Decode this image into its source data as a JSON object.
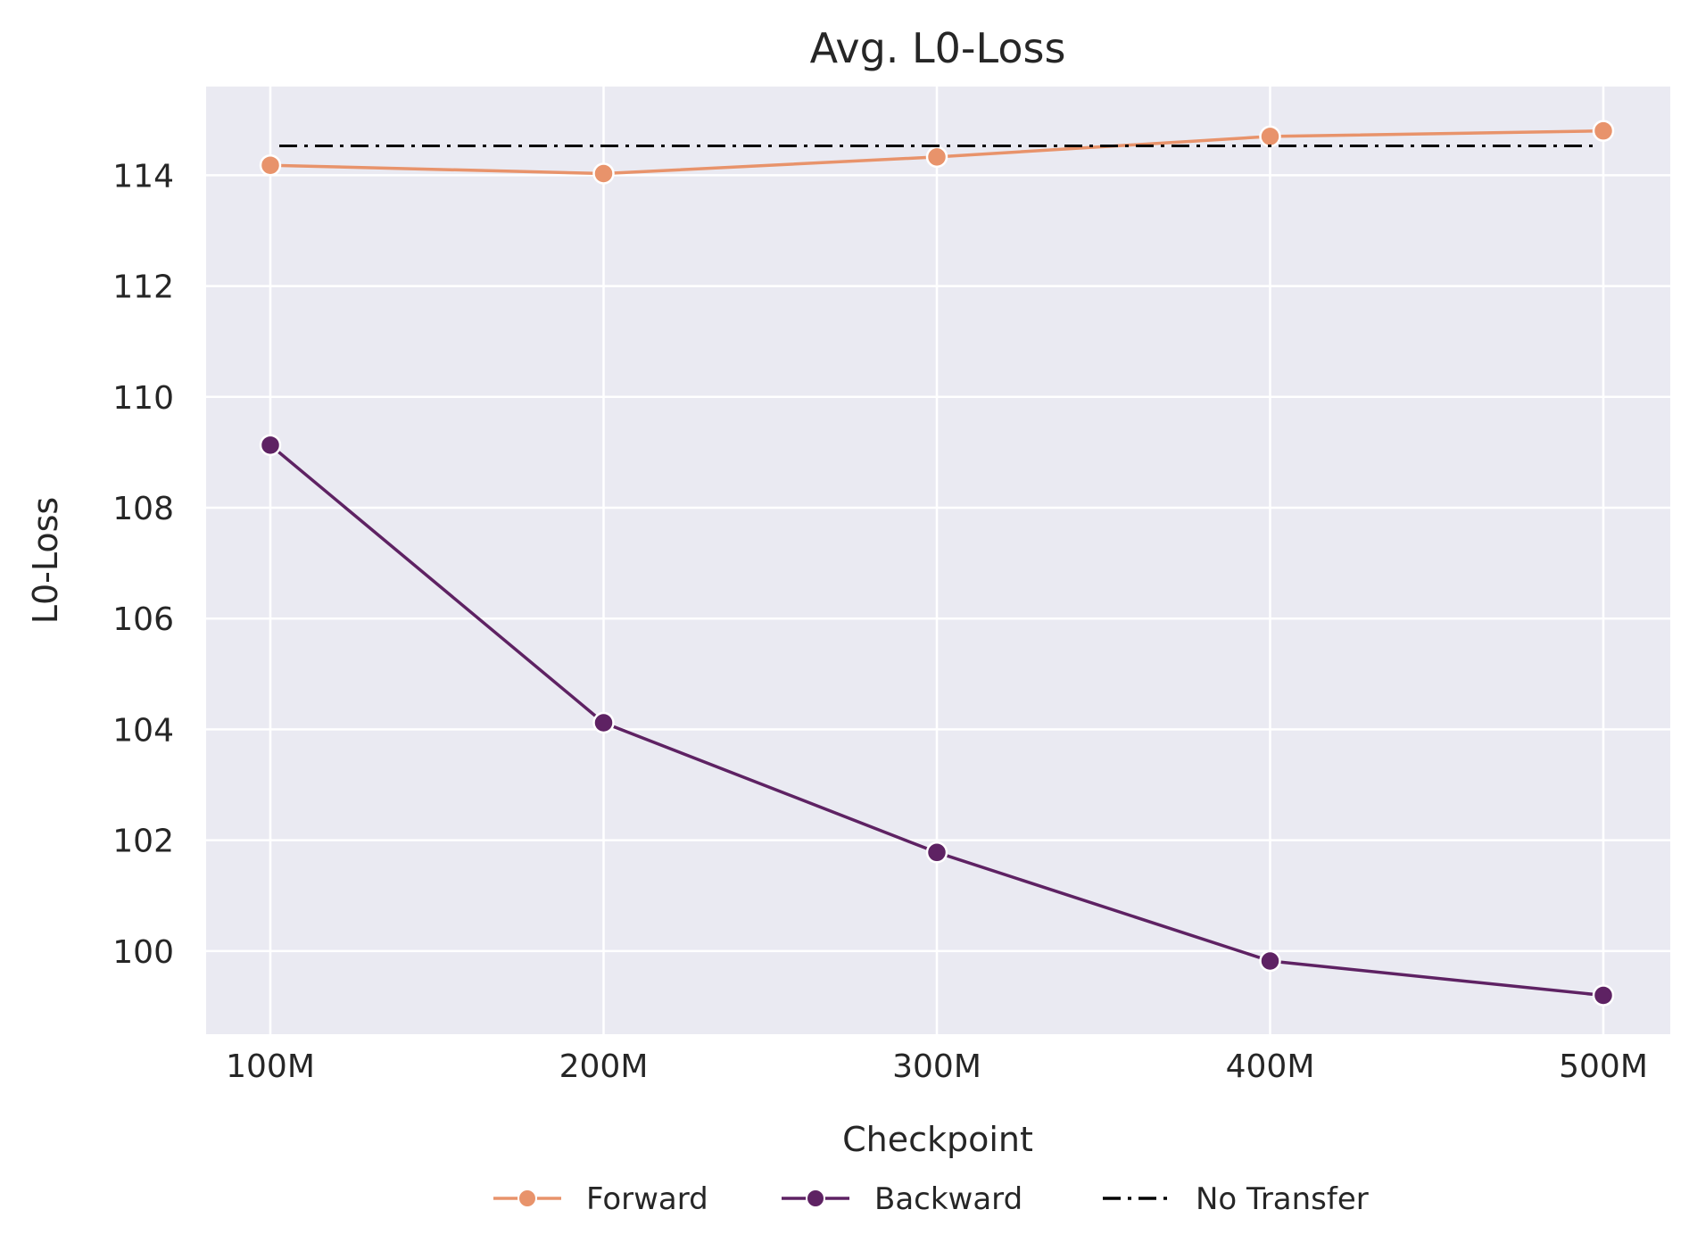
{
  "chart_data": {
    "type": "line",
    "title": "Avg. L0-Loss",
    "xlabel": "Checkpoint",
    "ylabel": "L0-Loss",
    "categories": [
      "100M",
      "200M",
      "300M",
      "400M",
      "500M"
    ],
    "yticks": [
      100,
      102,
      104,
      106,
      108,
      110,
      112,
      114
    ],
    "ylim": [
      98.5,
      115.6
    ],
    "grid": true,
    "legend_position": "bottom-center",
    "series": [
      {
        "name": "Forward",
        "color": "#e8936b",
        "marker": "circle",
        "style": "solid",
        "values": [
          114.18,
          114.03,
          114.33,
          114.7,
          114.8
        ]
      },
      {
        "name": "Backward",
        "color": "#5e2263",
        "marker": "circle",
        "style": "solid",
        "values": [
          109.13,
          104.12,
          101.78,
          99.82,
          99.2
        ]
      },
      {
        "name": "No Transfer",
        "color": "#000000",
        "marker": "none",
        "style": "dashdot",
        "values": [
          114.53,
          114.53,
          114.53,
          114.53,
          114.53
        ]
      }
    ],
    "plot_background": "#eaeaf2",
    "grid_color": "#ffffff"
  }
}
